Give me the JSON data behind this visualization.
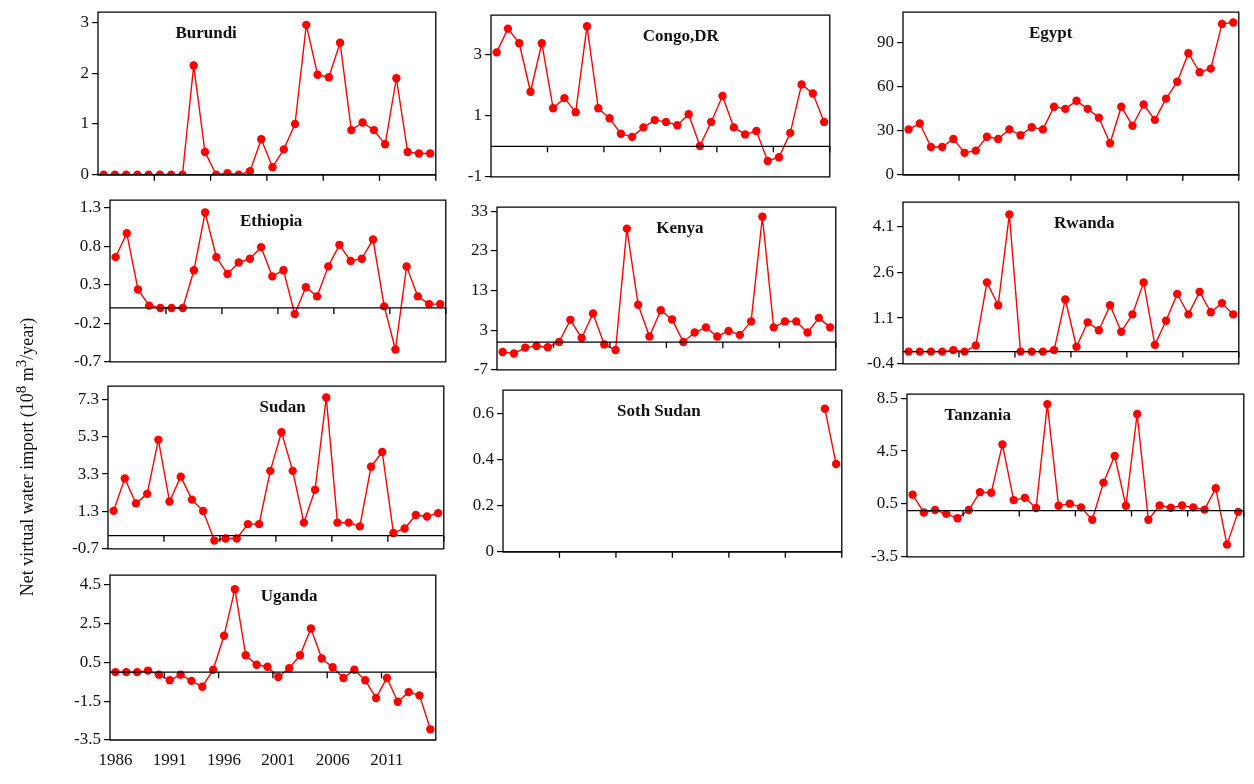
{
  "chart_data": [
    {
      "type": "line",
      "title": "Burundi",
      "categories": [
        null,
        null,
        null,
        null,
        null,
        null,
        null,
        null,
        null,
        null,
        null,
        null,
        null,
        null,
        null,
        null,
        null,
        null,
        null,
        null,
        null,
        null,
        null,
        null,
        null,
        null,
        null,
        null,
        null,
        null
      ],
      "values": [
        0,
        0,
        0,
        0,
        0,
        0,
        0,
        0,
        2.15,
        0.45,
        0,
        0.03,
        0,
        0.07,
        0.7,
        0.15,
        0.5,
        1.0,
        2.95,
        1.97,
        1.92,
        2.6,
        0.88,
        1.03,
        0.88,
        0.6,
        1.9,
        0.45,
        0.42,
        0.42
      ],
      "color": "#ff0000",
      "marker": "circle",
      "ylim": [
        0,
        3.2
      ],
      "yticks": [
        0,
        1,
        2,
        3
      ],
      "tick_labels": "y"
    },
    {
      "type": "line",
      "title": "Congo,DR",
      "categories": [
        null,
        null,
        null,
        null,
        null,
        null,
        null,
        null,
        null,
        null,
        null,
        null,
        null,
        null,
        null,
        null,
        null,
        null,
        null,
        null,
        null,
        null,
        null,
        null,
        null,
        null,
        null,
        null,
        null,
        null
      ],
      "values": [
        3.08,
        3.86,
        3.38,
        1.79,
        3.38,
        1.25,
        1.58,
        1.12,
        3.94,
        1.25,
        0.92,
        0.41,
        0.31,
        0.62,
        0.86,
        0.8,
        0.69,
        1.05,
        0.01,
        0.8,
        1.65,
        0.62,
        0.39,
        0.5,
        -0.48,
        -0.36,
        0.44,
        2.03,
        1.73,
        0.8
      ],
      "color": "#ff0000",
      "marker": "circle",
      "ylim": [
        -1,
        4.3
      ],
      "yticks": [
        -1,
        1,
        3
      ],
      "tick_labels": "y"
    },
    {
      "type": "line",
      "title": "Egypt",
      "categories": [
        null,
        null,
        null,
        null,
        null,
        null,
        null,
        null,
        null,
        null,
        null,
        null,
        null,
        null,
        null,
        null,
        null,
        null,
        null,
        null,
        null,
        null,
        null,
        null,
        null,
        null,
        null,
        null,
        null,
        null
      ],
      "values": [
        31,
        35,
        19,
        19,
        24.5,
        15,
        16.5,
        26,
        24.5,
        31,
        27,
        32.5,
        31,
        46.5,
        45,
        50.5,
        45,
        39,
        21.5,
        46.5,
        33.5,
        48,
        37.5,
        52,
        63.5,
        83,
        70,
        72.5,
        103,
        104
      ],
      "color": "#ff0000",
      "marker": "circle",
      "ylim": [
        0,
        111
      ],
      "yticks": [
        0,
        30,
        60,
        90
      ],
      "tick_labels": "y"
    },
    {
      "type": "line",
      "title": "Ethiopia",
      "categories": [
        null,
        null,
        null,
        null,
        null,
        null,
        null,
        null,
        null,
        null,
        null,
        null,
        null,
        null,
        null,
        null,
        null,
        null,
        null,
        null,
        null,
        null,
        null,
        null,
        null,
        null,
        null,
        null,
        null,
        null
      ],
      "values": [
        0.66,
        0.97,
        0.24,
        0.03,
        0,
        0,
        0,
        0.49,
        1.24,
        0.66,
        0.44,
        0.59,
        0.64,
        0.79,
        0.41,
        0.49,
        -0.08,
        0.27,
        0.15,
        0.54,
        0.82,
        0.61,
        0.64,
        0.89,
        0.02,
        -0.54,
        0.54,
        0.15,
        0.05,
        0.05
      ],
      "color": "#ff0000",
      "marker": "circle",
      "ylim": [
        -0.7,
        1.4
      ],
      "yticks": [
        -0.7,
        -0.2,
        0.3,
        0.8,
        1.3
      ],
      "tick_labels": "y"
    },
    {
      "type": "line",
      "title": "Kenya",
      "categories": [
        null,
        null,
        null,
        null,
        null,
        null,
        null,
        null,
        null,
        null,
        null,
        null,
        null,
        null,
        null,
        null,
        null,
        null,
        null,
        null,
        null,
        null,
        null,
        null,
        null,
        null,
        null,
        null,
        null,
        null
      ],
      "values": [
        -2.5,
        -2.9,
        -1.4,
        -1.0,
        -1.3,
        0,
        5.6,
        1.0,
        7.2,
        -0.6,
        -2.0,
        28.6,
        9.4,
        1.4,
        8.0,
        5.7,
        0,
        2.4,
        3.7,
        1.4,
        2.8,
        1.8,
        5.2,
        31.6,
        3.7,
        5.2,
        5.2,
        2.4,
        6.1,
        3.7
      ],
      "color": "#ff0000",
      "marker": "circle",
      "ylim": [
        -7,
        34
      ],
      "yticks": [
        -7,
        3,
        13,
        23,
        33
      ],
      "tick_labels": "y"
    },
    {
      "type": "line",
      "title": "Rwanda",
      "categories": [
        null,
        null,
        null,
        null,
        null,
        null,
        null,
        null,
        null,
        null,
        null,
        null,
        null,
        null,
        null,
        null,
        null,
        null,
        null,
        null,
        null,
        null,
        null,
        null,
        null,
        null,
        null,
        null,
        null,
        null
      ],
      "values": [
        0,
        0,
        0,
        0,
        0.05,
        0,
        0.2,
        2.27,
        1.52,
        4.5,
        0,
        0,
        0,
        0.05,
        1.71,
        0.16,
        0.96,
        0.7,
        1.52,
        0.65,
        1.22,
        2.27,
        0.22,
        1.01,
        1.89,
        1.22,
        1.96,
        1.29,
        1.59,
        1.22
      ],
      "color": "#ff0000",
      "marker": "circle",
      "ylim": [
        -0.4,
        4.9
      ],
      "yticks": [
        -0.4,
        1.1,
        2.6,
        4.1
      ],
      "tick_labels": "y"
    },
    {
      "type": "line",
      "title": "Sudan",
      "ylabel": "Net virtual water import (10$^{8}$ m$^{3}$/year)",
      "categories": [
        null,
        null,
        null,
        null,
        null,
        null,
        null,
        null,
        null,
        null,
        null,
        null,
        null,
        null,
        null,
        null,
        null,
        null,
        null,
        null,
        null,
        null,
        null,
        null,
        null,
        null,
        null,
        null,
        null,
        null
      ],
      "values": [
        1.33,
        3.06,
        1.73,
        2.24,
        5.13,
        1.83,
        3.16,
        1.93,
        1.32,
        -0.26,
        -0.15,
        -0.15,
        0.62,
        0.62,
        3.47,
        5.54,
        3.47,
        0.7,
        2.46,
        7.4,
        0.7,
        0.7,
        0.5,
        3.69,
        4.48,
        0.15,
        0.39,
        1.11,
        1.03,
        1.21
      ],
      "color": "#ff0000",
      "marker": "circle",
      "ylim": [
        -0.7,
        8.0
      ],
      "yticks": [
        -0.7,
        1.3,
        3.3,
        5.3,
        7.3
      ],
      "tick_labels": "y"
    },
    {
      "type": "line",
      "title": "Soth Sudan",
      "categories": [
        null,
        null,
        null,
        null,
        null,
        null,
        null,
        null,
        null,
        null,
        null,
        null,
        null,
        null,
        null,
        null,
        null,
        null,
        null,
        null,
        null,
        null,
        null,
        null,
        null,
        null,
        null,
        null,
        null,
        null
      ],
      "values": [
        null,
        null,
        null,
        null,
        null,
        null,
        null,
        null,
        null,
        null,
        null,
        null,
        null,
        null,
        null,
        null,
        null,
        null,
        null,
        null,
        null,
        null,
        null,
        null,
        null,
        null,
        null,
        null,
        0.62,
        0.38
      ],
      "color": "#ff0000",
      "marker": "circle",
      "ylim": [
        0,
        0.7
      ],
      "yticks": [
        0,
        0.2,
        0.4,
        0.6
      ],
      "tick_labels": "y"
    },
    {
      "type": "line",
      "title": "Tanzania",
      "categories": [
        null,
        null,
        null,
        null,
        null,
        null,
        null,
        null,
        null,
        null,
        null,
        null,
        null,
        null,
        null,
        null,
        null,
        null,
        null,
        null,
        null,
        null,
        null,
        null,
        null,
        null,
        null,
        null,
        null,
        null
      ],
      "values": [
        1.2,
        -0.15,
        0.04,
        -0.25,
        -0.58,
        0.04,
        1.39,
        1.34,
        5.0,
        0.79,
        0.96,
        0.19,
        8.05,
        0.36,
        0.52,
        0.24,
        -0.7,
        2.11,
        4.13,
        0.36,
        7.3,
        -0.7,
        0.38,
        0.21,
        0.38,
        0.24,
        0.07,
        1.68,
        -2.58,
        -0.1
      ],
      "color": "#ff0000",
      "marker": "circle",
      "ylim": [
        -3.5,
        8.8
      ],
      "yticks": [
        -3.5,
        0.5,
        4.5,
        8.5
      ],
      "tick_labels": "y"
    },
    {
      "type": "line",
      "title": "Uganda",
      "categories": [
        "1986",
        null,
        null,
        null,
        null,
        "1991",
        null,
        null,
        null,
        null,
        "1996",
        null,
        null,
        null,
        null,
        "2001",
        null,
        null,
        null,
        null,
        "2006",
        null,
        null,
        null,
        null,
        "2011",
        null,
        null,
        null,
        null
      ],
      "values": [
        0,
        0,
        0,
        0.08,
        -0.13,
        -0.42,
        -0.13,
        -0.45,
        -0.75,
        0.12,
        1.88,
        4.28,
        0.87,
        0.38,
        0.28,
        -0.25,
        0.2,
        0.87,
        2.25,
        0.7,
        0.25,
        -0.3,
        0.12,
        -0.42,
        -1.33,
        -0.3,
        -1.53,
        -1.03,
        -1.2,
        -2.95
      ],
      "color": "#ff0000",
      "marker": "circle",
      "ylim": [
        -3.5,
        5.0
      ],
      "yticks": [
        -3.5,
        -1.5,
        0.5,
        2.5,
        4.5
      ]
    }
  ]
}
